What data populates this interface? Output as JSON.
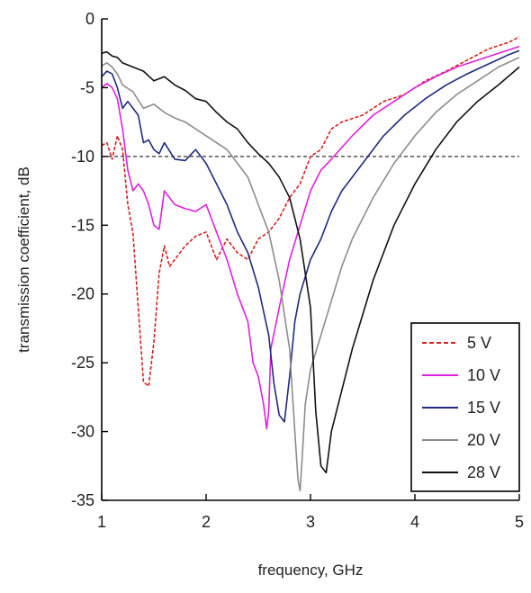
{
  "chart_data": {
    "type": "line",
    "xlabel": "frequency, GHz",
    "ylabel": "transmission coefficient, dB",
    "xlim": [
      1,
      5
    ],
    "ylim": [
      -35,
      0
    ],
    "xticks": [
      "1",
      "2",
      "3",
      "4",
      "5"
    ],
    "yticks": [
      "0",
      "-5",
      "-10",
      "-15",
      "-20",
      "-25",
      "-30",
      "-35"
    ],
    "grid": false,
    "legend_position": "bottom-right",
    "reference_line": {
      "y": -10,
      "style": "dashed",
      "color": "#333333"
    },
    "series": [
      {
        "name": "5 V",
        "color": "#d62020",
        "dash": "dashed",
        "x": [
          1.0,
          1.05,
          1.1,
          1.15,
          1.2,
          1.25,
          1.3,
          1.35,
          1.4,
          1.45,
          1.5,
          1.55,
          1.6,
          1.65,
          1.7,
          1.8,
          1.9,
          2.0,
          2.1,
          2.2,
          2.3,
          2.4,
          2.5,
          2.6,
          2.7,
          2.8,
          2.9,
          3.0,
          3.1,
          3.2,
          3.3,
          3.5,
          3.7,
          3.9,
          4.1,
          4.3,
          4.5,
          4.7,
          4.9,
          5.0
        ],
        "y": [
          -9.2,
          -9.0,
          -10.2,
          -8.5,
          -9.5,
          -13.5,
          -15.6,
          -21.0,
          -26.4,
          -26.7,
          -23.5,
          -18.5,
          -16.5,
          -18.0,
          -17.5,
          -16.5,
          -15.8,
          -15.5,
          -17.5,
          -16.0,
          -17.0,
          -17.5,
          -16.0,
          -15.5,
          -14.5,
          -13.0,
          -12.0,
          -10.0,
          -9.5,
          -8.0,
          -7.5,
          -7.0,
          -6.0,
          -5.5,
          -4.5,
          -3.8,
          -3.0,
          -2.2,
          -1.7,
          -1.3
        ]
      },
      {
        "name": "10 V",
        "color": "#e020e0",
        "dash": "solid",
        "x": [
          1.0,
          1.05,
          1.1,
          1.15,
          1.2,
          1.25,
          1.3,
          1.35,
          1.4,
          1.45,
          1.5,
          1.55,
          1.6,
          1.7,
          1.8,
          1.9,
          2.0,
          2.1,
          2.2,
          2.3,
          2.4,
          2.45,
          2.5,
          2.55,
          2.58,
          2.6,
          2.62,
          2.7,
          2.8,
          2.9,
          3.0,
          3.1,
          3.2,
          3.4,
          3.6,
          3.8,
          4.0,
          4.2,
          4.4,
          4.6,
          4.8,
          5.0
        ],
        "y": [
          -5.0,
          -4.7,
          -5.0,
          -5.8,
          -8.0,
          -11.0,
          -12.5,
          -12.0,
          -12.5,
          -13.5,
          -15.0,
          -15.3,
          -12.5,
          -13.5,
          -13.8,
          -14.0,
          -13.5,
          -15.5,
          -17.5,
          -20.0,
          -22.0,
          -25.0,
          -26.0,
          -28.0,
          -29.8,
          -28.5,
          -24.0,
          -21.0,
          -17.5,
          -15.0,
          -12.5,
          -11.0,
          -10.2,
          -8.5,
          -7.0,
          -6.0,
          -5.0,
          -4.2,
          -3.5,
          -3.0,
          -2.5,
          -2.0
        ]
      },
      {
        "name": "15 V",
        "color": "#1f2a80",
        "dash": "solid",
        "x": [
          1.0,
          1.05,
          1.1,
          1.15,
          1.2,
          1.25,
          1.3,
          1.35,
          1.4,
          1.45,
          1.5,
          1.55,
          1.6,
          1.7,
          1.8,
          1.9,
          2.0,
          2.1,
          2.2,
          2.3,
          2.4,
          2.5,
          2.6,
          2.65,
          2.7,
          2.75,
          2.8,
          2.85,
          2.9,
          3.0,
          3.1,
          3.2,
          3.3,
          3.5,
          3.7,
          3.9,
          4.1,
          4.3,
          4.5,
          4.7,
          4.9,
          5.0
        ],
        "y": [
          -4.2,
          -3.8,
          -4.0,
          -5.0,
          -6.5,
          -6.0,
          -6.5,
          -7.0,
          -9.0,
          -8.8,
          -9.5,
          -9.8,
          -9.0,
          -10.2,
          -10.3,
          -9.5,
          -10.5,
          -12.0,
          -13.5,
          -15.5,
          -17.0,
          -19.5,
          -23.0,
          -26.5,
          -28.8,
          -29.3,
          -26.0,
          -22.0,
          -20.0,
          -17.5,
          -16.0,
          -14.0,
          -12.5,
          -10.5,
          -8.5,
          -7.0,
          -5.8,
          -4.8,
          -4.0,
          -3.3,
          -2.6,
          -2.3
        ]
      },
      {
        "name": "20 V",
        "color": "#8c8c8c",
        "dash": "solid",
        "x": [
          1.0,
          1.05,
          1.1,
          1.15,
          1.2,
          1.3,
          1.4,
          1.5,
          1.6,
          1.7,
          1.8,
          1.9,
          2.0,
          2.1,
          2.2,
          2.3,
          2.4,
          2.5,
          2.6,
          2.7,
          2.8,
          2.85,
          2.88,
          2.9,
          2.92,
          2.95,
          3.0,
          3.1,
          3.2,
          3.3,
          3.4,
          3.6,
          3.8,
          4.0,
          4.2,
          4.4,
          4.6,
          4.8,
          5.0
        ],
        "y": [
          -3.4,
          -3.2,
          -3.5,
          -4.0,
          -4.8,
          -5.3,
          -6.5,
          -6.2,
          -6.8,
          -7.2,
          -7.5,
          -8.0,
          -8.5,
          -9.0,
          -9.5,
          -10.5,
          -11.5,
          -13.5,
          -15.5,
          -19.0,
          -24.0,
          -30.0,
          -33.5,
          -34.3,
          -32.0,
          -28.0,
          -25.5,
          -23.0,
          -20.5,
          -18.0,
          -16.0,
          -13.0,
          -10.5,
          -8.5,
          -6.8,
          -5.5,
          -4.5,
          -3.5,
          -2.8
        ]
      },
      {
        "name": "28 V",
        "color": "#111111",
        "dash": "solid",
        "x": [
          1.0,
          1.05,
          1.1,
          1.15,
          1.2,
          1.3,
          1.4,
          1.5,
          1.6,
          1.7,
          1.8,
          1.9,
          2.0,
          2.1,
          2.2,
          2.3,
          2.4,
          2.5,
          2.6,
          2.7,
          2.8,
          2.9,
          3.0,
          3.05,
          3.1,
          3.15,
          3.2,
          3.3,
          3.4,
          3.5,
          3.6,
          3.8,
          4.0,
          4.2,
          4.4,
          4.6,
          4.8,
          5.0
        ],
        "y": [
          -2.5,
          -2.4,
          -2.7,
          -2.8,
          -3.2,
          -3.5,
          -3.8,
          -4.5,
          -4.2,
          -4.8,
          -5.2,
          -5.8,
          -6.0,
          -6.8,
          -7.5,
          -8.0,
          -9.0,
          -9.8,
          -10.5,
          -11.5,
          -13.0,
          -16.0,
          -21.0,
          -28.5,
          -32.5,
          -33.0,
          -30.0,
          -27.0,
          -24.0,
          -21.5,
          -19.0,
          -15.0,
          -12.0,
          -9.5,
          -7.5,
          -6.0,
          -4.8,
          -3.5
        ]
      }
    ]
  }
}
